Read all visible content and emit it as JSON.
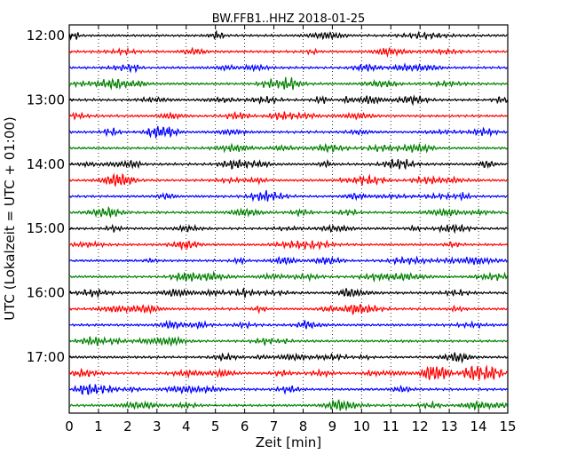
{
  "chart_data": {
    "type": "line",
    "title": "BW.FFB1..HHZ 2018-01-25",
    "xlabel": "Zeit  [min]",
    "ylabel": "UTC (Lokalzeit = UTC + 01:00)",
    "xlim": [
      0,
      15
    ],
    "x_ticks": [
      0,
      1,
      2,
      3,
      4,
      5,
      6,
      7,
      8,
      9,
      10,
      11,
      12,
      13,
      14,
      15
    ],
    "y_tick_labels": [
      "12:00",
      "13:00",
      "14:00",
      "15:00",
      "16:00",
      "17:00"
    ],
    "grid": "vertical dotted lines at every minute",
    "row_interval_minutes": 15,
    "start_time": "12:00",
    "series_colors": [
      "#000000",
      "#ff0000",
      "#0000ff",
      "#008000"
    ],
    "rows": [
      {
        "time": "12:00"
      },
      {
        "time": "12:15"
      },
      {
        "time": "12:30"
      },
      {
        "time": "12:45"
      },
      {
        "time": "13:00"
      },
      {
        "time": "13:15"
      },
      {
        "time": "13:30"
      },
      {
        "time": "13:45"
      },
      {
        "time": "14:00"
      },
      {
        "time": "14:15"
      },
      {
        "time": "14:30"
      },
      {
        "time": "14:45"
      },
      {
        "time": "15:00"
      },
      {
        "time": "15:15"
      },
      {
        "time": "15:30"
      },
      {
        "time": "15:45"
      },
      {
        "time": "16:00"
      },
      {
        "time": "16:15"
      },
      {
        "time": "16:30"
      },
      {
        "time": "16:45"
      },
      {
        "time": "17:00"
      },
      {
        "time": "17:15"
      },
      {
        "time": "17:30"
      },
      {
        "time": "17:45"
      }
    ]
  }
}
